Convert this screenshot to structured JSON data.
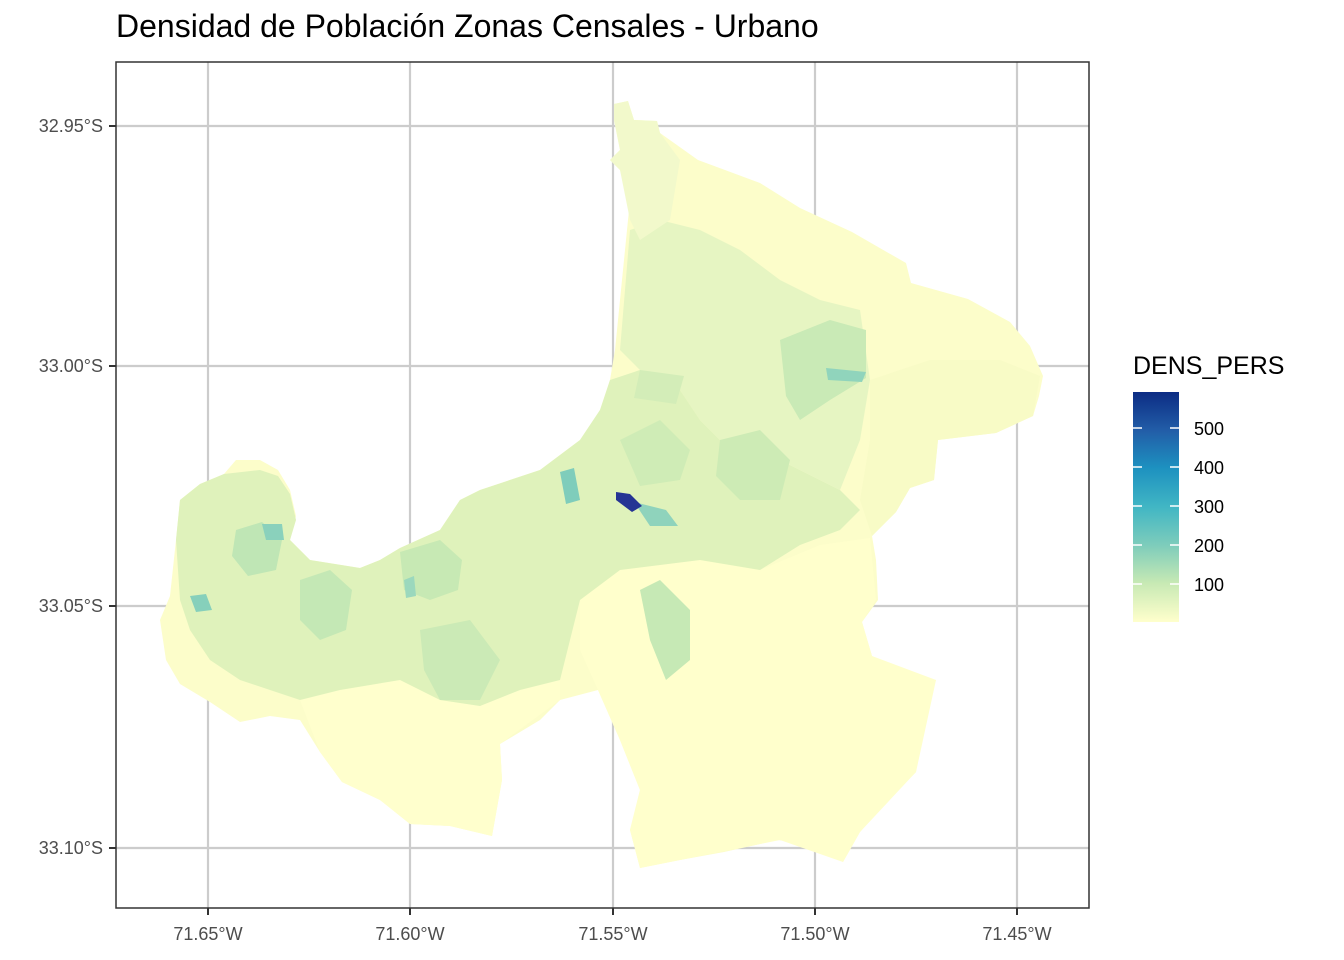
{
  "title": "Densidad de Población Zonas Censales - Urbano",
  "axes": {
    "x_ticks": [
      "71.65°W",
      "71.60°W",
      "71.55°W",
      "71.50°W",
      "71.45°W"
    ],
    "y_ticks": [
      "32.95°S",
      "33.00°S",
      "33.05°S",
      "33.10°S"
    ]
  },
  "legend": {
    "title": "DENS_PERS",
    "labels": [
      "500",
      "400",
      "300",
      "200",
      "100"
    ],
    "colors": [
      "#ffffcc",
      "#c7e9b4",
      "#7fcdbb",
      "#41b6c4",
      "#1d91c0",
      "#225ea8",
      "#0c2c84"
    ]
  },
  "colors": {
    "panel_border": "#333333",
    "grid": "#cccccc",
    "base_fill": "#ffffcc"
  }
}
